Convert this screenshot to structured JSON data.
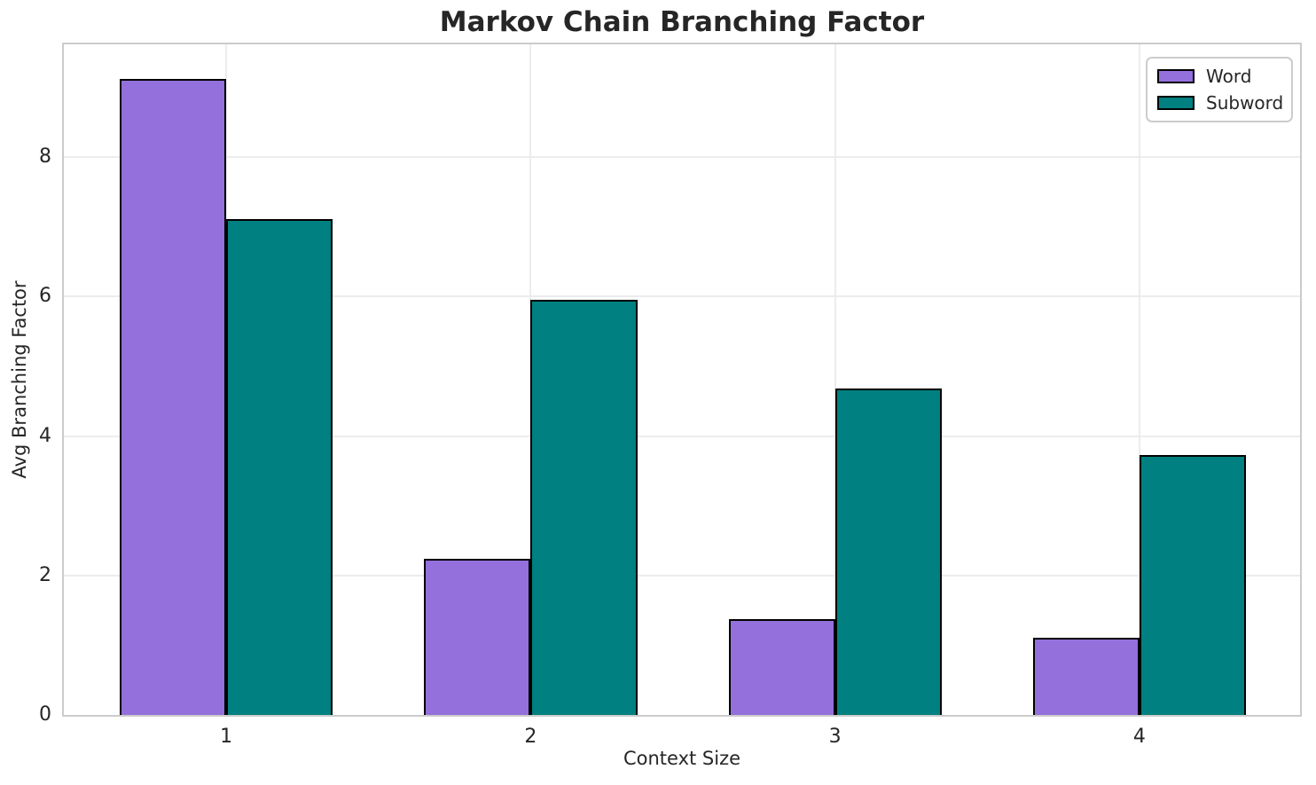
{
  "chart_data": {
    "type": "bar",
    "title": "Markov Chain Branching Factor",
    "xlabel": "Context Size",
    "ylabel": "Avg Branching Factor",
    "categories": [
      "1",
      "2",
      "3",
      "4"
    ],
    "x": [
      1,
      2,
      3,
      4
    ],
    "series": [
      {
        "name": "Word",
        "values": [
          9.13,
          2.24,
          1.38,
          1.11
        ],
        "color": "#9370DB",
        "offset": -0.175
      },
      {
        "name": "Subword",
        "values": [
          7.11,
          5.95,
          4.68,
          3.73
        ],
        "color": "#008080",
        "offset": 0.175
      }
    ],
    "bar_width": 0.35,
    "bar_edge_color": "#000000",
    "xlim": [
      0.4665,
      4.5275
    ],
    "ylim": [
      0,
      9.62
    ],
    "yticks": [
      0,
      2,
      4,
      6,
      8
    ],
    "grid": true,
    "grid_color": "#ECECEC",
    "spine_color": "#CBCBCB",
    "text_color": "#262626",
    "background": "#FFFFFF",
    "legend": {
      "position": "upper right",
      "items": [
        "Word",
        "Subword"
      ]
    }
  }
}
